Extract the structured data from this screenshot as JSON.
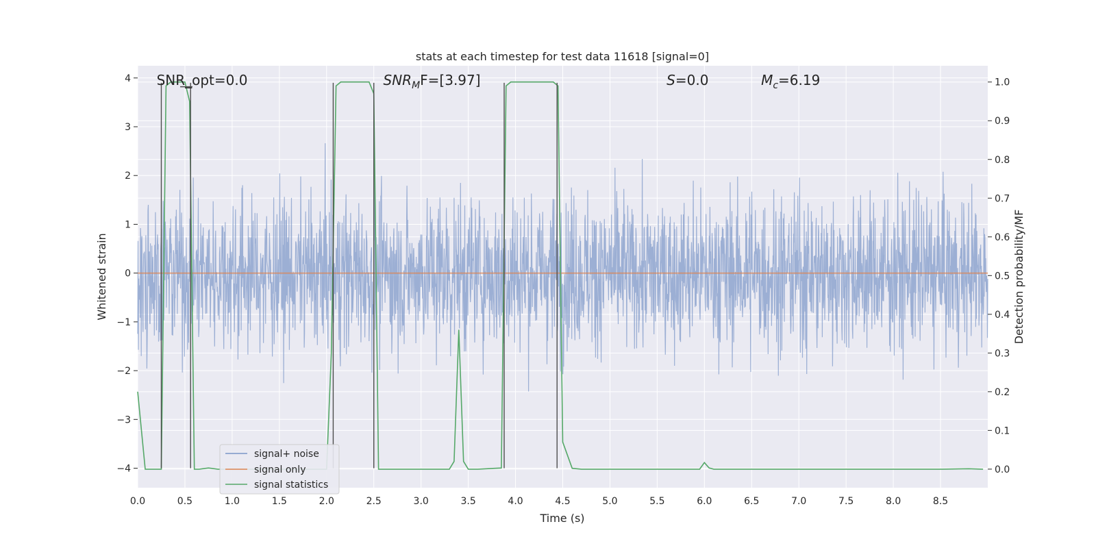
{
  "chart_data": {
    "type": "line",
    "title": "stats at each timestep for test data 11618 [signal=0]",
    "xlabel": "Time (s)",
    "ylabel": "Whitened strain",
    "ylabel_right": "Detection probability/MF",
    "xlim": [
      0.0,
      9.0
    ],
    "ylim": [
      -4.4,
      4.25
    ],
    "ylim_right": [
      -0.048,
      1.042
    ],
    "xticks": [
      0.0,
      0.5,
      1.0,
      1.5,
      2.0,
      2.5,
      3.0,
      3.5,
      4.0,
      4.5,
      5.0,
      5.5,
      6.0,
      6.5,
      7.0,
      7.5,
      8.0,
      8.5
    ],
    "xtick_labels": [
      "0.0",
      "0.5",
      "1.0",
      "1.5",
      "2.0",
      "2.5",
      "3.0",
      "3.5",
      "4.0",
      "4.5",
      "5.0",
      "5.5",
      "6.0",
      "6.5",
      "7.0",
      "7.5",
      "8.0",
      "8.5"
    ],
    "yticks": [
      -4,
      -3,
      -2,
      -1,
      0,
      1,
      2,
      3,
      4
    ],
    "ytick_labels": [
      "−4",
      "−3",
      "−2",
      "−1",
      "0",
      "1",
      "2",
      "3",
      "4"
    ],
    "yticks_right": [
      0.0,
      0.1,
      0.2,
      0.3,
      0.4,
      0.5,
      0.6,
      0.7,
      0.8,
      0.9,
      1.0
    ],
    "ytick_labels_right": [
      "0.0",
      "0.1",
      "0.2",
      "0.3",
      "0.4",
      "0.5",
      "0.6",
      "0.7",
      "0.8",
      "0.9",
      "1.0"
    ],
    "annotations": [
      {
        "text": "SNR_opt=0.0",
        "x": 0.2
      },
      {
        "text": "SNR",
        "sub": "M",
        "rest": "F=[3.97]",
        "x": 2.6
      },
      {
        "text": "S",
        "rest": "=0.0",
        "x": 5.6
      },
      {
        "text": "M",
        "sub": "c",
        "rest": "=6.19",
        "x": 6.6
      }
    ],
    "legend": {
      "position": "lower-left",
      "entries": [
        "signal+ noise",
        "signal only",
        "signal statistics"
      ]
    },
    "series": [
      {
        "name": "signal+ noise",
        "color": "#7b96c8",
        "note": "whitened noise samples (dense)",
        "amplitude_rms": 1.0
      },
      {
        "name": "signal only",
        "color": "#dd8452",
        "x": [
          0,
          9
        ],
        "y": [
          0,
          0
        ]
      },
      {
        "name": "signal statistics",
        "color": "#55a868",
        "x": [
          0.0,
          0.08,
          0.25,
          0.3,
          0.35,
          0.5,
          0.55,
          0.6,
          0.65,
          0.75,
          0.85,
          1.0,
          1.5,
          2.0,
          2.05,
          2.1,
          2.15,
          2.45,
          2.5,
          2.55,
          2.6,
          3.0,
          3.3,
          3.35,
          3.4,
          3.45,
          3.5,
          3.6,
          3.85,
          3.9,
          3.95,
          4.4,
          4.45,
          4.5,
          4.6,
          4.7,
          5.0,
          5.5,
          5.95,
          6.0,
          6.05,
          6.1,
          6.5,
          7.0,
          7.5,
          8.0,
          8.5,
          8.8,
          8.95
        ],
        "y": [
          0.2,
          0.0,
          0.0,
          0.99,
          1.0,
          1.0,
          0.95,
          0.0,
          0.0,
          0.003,
          0.0,
          0.0,
          0.0,
          0.0,
          0.3,
          0.99,
          1.0,
          1.0,
          0.97,
          0.0,
          0.0,
          0.0,
          0.0,
          0.02,
          0.36,
          0.02,
          0.0,
          0.0,
          0.003,
          0.99,
          1.0,
          1.0,
          0.99,
          0.07,
          0.002,
          0.0,
          0.0,
          0.0,
          0.0,
          0.017,
          0.003,
          0.0,
          0.0,
          0.0,
          0.0,
          0.0,
          0.0,
          0.001,
          0.0
        ]
      },
      {
        "name": "vertical markers",
        "color": "#4d4d4d",
        "x": [
          0.25,
          0.56,
          2.07,
          2.5,
          3.88,
          4.44
        ],
        "y_range": [
          -4.0,
          3.9
        ]
      },
      {
        "name": "horizontal marker",
        "color": "#4d4d4d",
        "x_range": [
          0.45,
          0.58
        ],
        "y": 3.82
      }
    ]
  }
}
